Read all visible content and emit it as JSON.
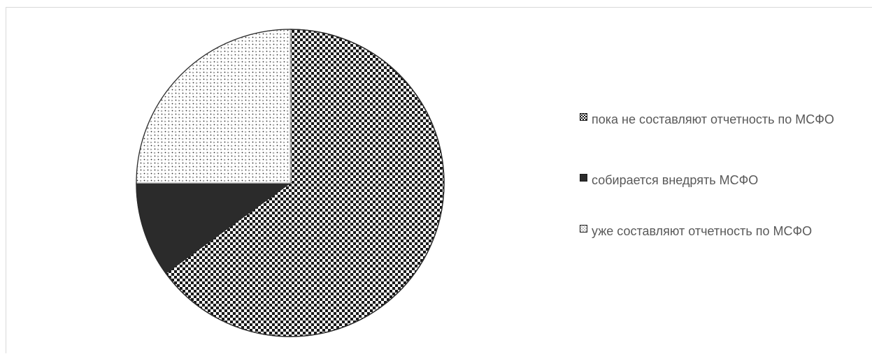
{
  "chart_data": {
    "type": "pie",
    "title": "",
    "categories": [
      "пока не составляют отчетность по МСФО",
      "собирается внедрять МСФО",
      "уже составляют отчетность по МСФО"
    ],
    "values": [
      65,
      10,
      25
    ],
    "unit": "%",
    "legend_position": "right",
    "colors": {
      "slice_fill_dark": "#000000",
      "slice_fill_solid": "#2b2b2b",
      "slice_fill_light": "#ffffff",
      "outline": "#2b2b2b",
      "legend_text": "#595959"
    },
    "patterns": [
      "checkerboard",
      "solid",
      "dotted"
    ]
  },
  "legend": {
    "items": [
      {
        "label": "пока не составляют отчетность по МСФО",
        "swatch": "checkerboard"
      },
      {
        "label": "собирается внедрять МСФО",
        "swatch": "solid"
      },
      {
        "label": "уже составляют отчетность по МСФО",
        "swatch": "dotted"
      }
    ]
  }
}
